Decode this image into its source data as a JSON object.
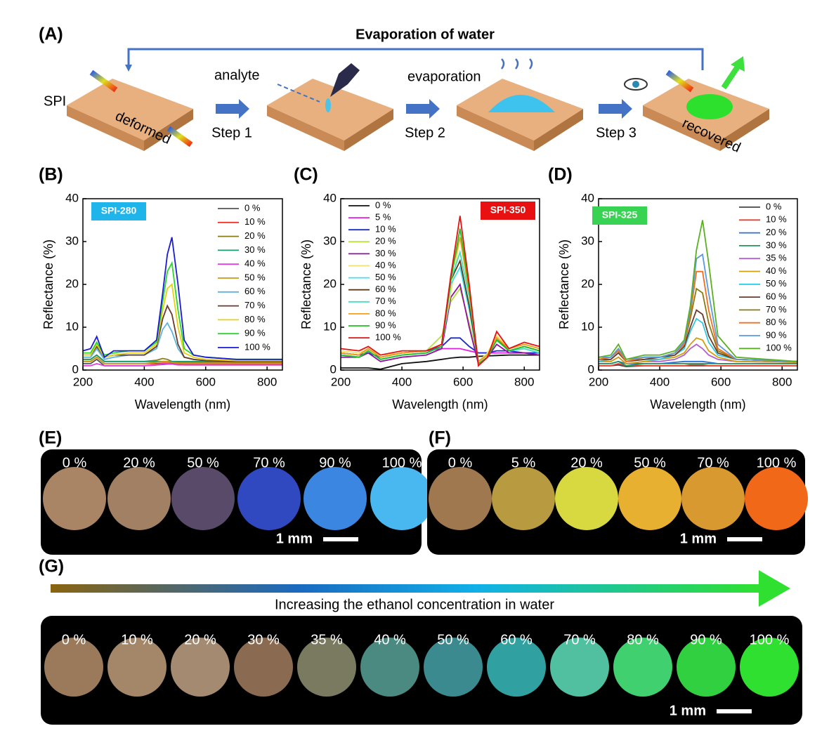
{
  "panel_labels": [
    "(A)",
    "(B)",
    "(C)",
    "(D)",
    "(E)",
    "(F)",
    "(G)"
  ],
  "schematic": {
    "title": "Evaporation of water",
    "sample": "SPI",
    "deformed": "deformed",
    "analyte": "analyte",
    "step1": "Step 1",
    "evaporation": "evaporation",
    "step2": "Step 2",
    "step3": "Step 3",
    "recovered": "recovered"
  },
  "chart_data": [
    {
      "type": "line",
      "annotation": "SPI-280",
      "annotation_color": "#1fb5ea",
      "xlabel": "Wavelength (nm)",
      "ylabel": "Reflectance (%)",
      "xlim": [
        200,
        850
      ],
      "xticks": [
        200,
        400,
        600,
        800
      ],
      "ylim": [
        0,
        40
      ],
      "yticks": [
        0,
        10,
        20,
        30,
        40
      ],
      "x": [
        200,
        225,
        245,
        270,
        300,
        350,
        400,
        440,
        460,
        475,
        490,
        510,
        530,
        560,
        600,
        700,
        850
      ],
      "series": [
        {
          "name": "0 %",
          "color": "#555555",
          "values": [
            1.5,
            1.5,
            2.5,
            1,
            1,
            1,
            1,
            1.2,
            1.3,
            1.4,
            1.4,
            1.3,
            1.2,
            1.2,
            1.2,
            1.2,
            1.2
          ]
        },
        {
          "name": "10 %",
          "color": "#e8362a",
          "values": [
            2,
            2,
            3,
            1.5,
            1.5,
            1.5,
            1.5,
            1.5,
            1.6,
            1.6,
            1.6,
            1.5,
            1.5,
            1.5,
            1.5,
            1.5,
            1.5
          ]
        },
        {
          "name": "20 %",
          "color": "#8b7a1a",
          "values": [
            2.5,
            2.5,
            3.5,
            2,
            2,
            2,
            2,
            2.3,
            2.7,
            2.5,
            2,
            1.8,
            1.8,
            1.8,
            1.8,
            1.8,
            1.8
          ]
        },
        {
          "name": "30 %",
          "color": "#1a9a6a",
          "values": [
            2.5,
            2.5,
            3.5,
            2,
            2,
            2,
            2,
            2,
            2,
            2,
            2,
            2,
            2,
            2,
            2,
            2,
            2
          ]
        },
        {
          "name": "40 %",
          "color": "#e040e0",
          "values": [
            1,
            1,
            1.5,
            1,
            1,
            1,
            1,
            1.2,
            1.4,
            1.5,
            1.4,
            1.2,
            1.2,
            1.2,
            1.2,
            1.2,
            1.2
          ]
        },
        {
          "name": "50 %",
          "color": "#c89a10",
          "values": [
            2,
            2,
            3,
            1.5,
            1.5,
            1.5,
            1.5,
            1.8,
            2,
            2,
            1.8,
            1.6,
            1.6,
            1.6,
            1.6,
            1.6,
            1.6
          ]
        },
        {
          "name": "60 %",
          "color": "#5ab4e0",
          "values": [
            3,
            3,
            5,
            2.5,
            3,
            3.5,
            3.5,
            5,
            9.5,
            11,
            9,
            5,
            3,
            2.5,
            2.2,
            2,
            2
          ]
        },
        {
          "name": "70 %",
          "color": "#6a3a2a",
          "values": [
            3.5,
            3.5,
            5.5,
            3,
            3.5,
            3.5,
            3.5,
            5.5,
            12,
            15,
            13,
            6,
            3,
            2.5,
            2.2,
            2,
            2
          ]
        },
        {
          "name": "80 %",
          "color": "#e8d010",
          "values": [
            3.5,
            3.5,
            6,
            3,
            3.5,
            4,
            4,
            6,
            14,
            19,
            20,
            10,
            4,
            3,
            2.5,
            2.2,
            2.2
          ]
        },
        {
          "name": "90 %",
          "color": "#2ad82a",
          "values": [
            4,
            4,
            6.5,
            3.5,
            4,
            4.5,
            4.5,
            6.5,
            16,
            23,
            25,
            14,
            5,
            3.5,
            3,
            2.5,
            2.5
          ]
        },
        {
          "name": "100 %",
          "color": "#1a1ad8",
          "values": [
            4.5,
            5,
            7.8,
            3,
            4.5,
            4.5,
            4.5,
            7,
            18,
            27,
            31,
            20,
            7,
            3.5,
            3,
            2.5,
            2.5
          ]
        }
      ]
    },
    {
      "type": "line",
      "annotation": "SPI-350",
      "annotation_color": "#e81010",
      "xlabel": "Wavelength (nm)",
      "ylabel": "Reflectance (%)",
      "xlim": [
        200,
        850
      ],
      "xticks": [
        200,
        400,
        600,
        800
      ],
      "ylim": [
        0,
        40
      ],
      "yticks": [
        0,
        10,
        20,
        30,
        40
      ],
      "x": [
        200,
        260,
        290,
        330,
        400,
        480,
        530,
        560,
        590,
        620,
        650,
        680,
        710,
        750,
        800,
        850
      ],
      "series": [
        {
          "name": "0 %",
          "color": "#111111",
          "values": [
            0.5,
            0.5,
            0.5,
            0.2,
            1.5,
            2,
            2.5,
            2.8,
            3,
            3,
            3.2,
            3.3,
            3.4,
            3.5,
            3.5,
            3.5
          ]
        },
        {
          "name": "5 %",
          "color": "#e020e0",
          "values": [
            4,
            3.5,
            4,
            3,
            4,
            4.5,
            5,
            5,
            5,
            4.5,
            4,
            4,
            4,
            4,
            4,
            4
          ]
        },
        {
          "name": "10 %",
          "color": "#1a2ad0",
          "values": [
            4,
            3.5,
            4,
            3,
            4,
            4.5,
            5.5,
            7.5,
            7.5,
            5.5,
            4,
            4,
            4.5,
            4.5,
            4,
            4
          ]
        },
        {
          "name": "20 %",
          "color": "#b8e040",
          "values": [
            4,
            3.5,
            5,
            3,
            4,
            4.5,
            8,
            16,
            19,
            11,
            2,
            4,
            8,
            5,
            6,
            5
          ]
        },
        {
          "name": "30 %",
          "color": "#9010a0",
          "values": [
            3,
            3,
            4,
            2,
            3,
            3.5,
            5,
            17,
            20,
            10,
            1.5,
            3,
            6,
            4,
            4,
            3.5
          ]
        },
        {
          "name": "40 %",
          "color": "#f0e070",
          "values": [
            4.5,
            4,
            5,
            3.5,
            4,
            4.5,
            6,
            18,
            31,
            18,
            2,
            4,
            8,
            5,
            6,
            5
          ]
        },
        {
          "name": "50 %",
          "color": "#40e0f0",
          "values": [
            3.5,
            3,
            4.5,
            2.5,
            3.5,
            4,
            5.5,
            20,
            24,
            14,
            2,
            3.5,
            7,
            4.5,
            5,
            4
          ]
        },
        {
          "name": "60 %",
          "color": "#5a3a1a",
          "values": [
            4,
            3.5,
            5,
            3,
            4,
            4.5,
            6,
            21,
            25.5,
            15,
            2,
            3.5,
            7.5,
            4.5,
            5.5,
            4.5
          ]
        },
        {
          "name": "70 %",
          "color": "#40e0c0",
          "values": [
            3.5,
            3,
            4.5,
            2.5,
            3.5,
            4,
            5.5,
            21,
            27.5,
            17,
            2,
            3.5,
            7,
            4.5,
            5,
            4
          ]
        },
        {
          "name": "80 %",
          "color": "#f0a020",
          "values": [
            4,
            3.5,
            5,
            3,
            4,
            4.5,
            6,
            22,
            31,
            18,
            2,
            3.5,
            7.5,
            5,
            6,
            5
          ]
        },
        {
          "name": "90 %",
          "color": "#20c020",
          "values": [
            3.5,
            3,
            4.5,
            2.5,
            3.5,
            4,
            5.5,
            21,
            33,
            19,
            1.5,
            3,
            7,
            4.5,
            5.5,
            4.5
          ]
        },
        {
          "name": "100 %",
          "color": "#e81010",
          "values": [
            5,
            4.5,
            5.5,
            3.5,
            4.5,
            4.5,
            6,
            22,
            36,
            20,
            1,
            3,
            9,
            5,
            6.5,
            5.5
          ]
        }
      ]
    },
    {
      "type": "line",
      "annotation": "SPI-325",
      "annotation_color": "#39d353",
      "xlabel": "Wavelength (nm)",
      "ylabel": "Reflectance (%)",
      "xlim": [
        200,
        850
      ],
      "xticks": [
        200,
        400,
        600,
        800
      ],
      "ylim": [
        0,
        40
      ],
      "yticks": [
        0,
        10,
        20,
        30,
        40
      ],
      "x": [
        200,
        240,
        265,
        290,
        350,
        400,
        450,
        480,
        500,
        520,
        540,
        560,
        590,
        650,
        850
      ],
      "series": [
        {
          "name": "0 %",
          "color": "#444444",
          "values": [
            1,
            1,
            1.2,
            0.8,
            1,
            1,
            1,
            1,
            1,
            1,
            1,
            1,
            1,
            1,
            1
          ]
        },
        {
          "name": "10 %",
          "color": "#e84030",
          "values": [
            1,
            1,
            1.5,
            1,
            1,
            1,
            1,
            1,
            1.2,
            1.2,
            1.2,
            1,
            1,
            1,
            1
          ]
        },
        {
          "name": "20 %",
          "color": "#2a70d0",
          "values": [
            1.5,
            1.5,
            2,
            1.5,
            1.5,
            1.5,
            1.8,
            2,
            2,
            2,
            2,
            1.8,
            1.5,
            1.5,
            1.5
          ]
        },
        {
          "name": "30 %",
          "color": "#1a9a5a",
          "values": [
            1.5,
            1.5,
            2,
            1,
            1.5,
            1.5,
            1.5,
            1.5,
            1.5,
            1.5,
            1.5,
            1.5,
            1.5,
            1.5,
            1.5
          ]
        },
        {
          "name": "35 %",
          "color": "#b060d0",
          "values": [
            2,
            2,
            3,
            1.5,
            2,
            2,
            2.5,
            3.5,
            5,
            6,
            5,
            3.5,
            2.5,
            2,
            1.8
          ]
        },
        {
          "name": "40 %",
          "color": "#d0a010",
          "values": [
            2,
            2,
            3,
            1.5,
            2,
            2.5,
            3,
            4,
            6,
            7.5,
            7,
            4.5,
            3,
            2,
            1.8
          ]
        },
        {
          "name": "50 %",
          "color": "#30c8e0",
          "values": [
            2,
            2.5,
            4,
            2,
            2.5,
            2.5,
            3.5,
            5,
            9,
            12,
            11,
            6.5,
            3.5,
            2.5,
            2
          ]
        },
        {
          "name": "60 %",
          "color": "#6a3a2a",
          "values": [
            2.5,
            2.5,
            4,
            2,
            2.5,
            3,
            3.5,
            5.5,
            10,
            14,
            13,
            8,
            4,
            2.5,
            2
          ]
        },
        {
          "name": "70 %",
          "color": "#8a7a10",
          "values": [
            2.5,
            3,
            4.5,
            2,
            3,
            3,
            4,
            6,
            12,
            19,
            18,
            11,
            4.5,
            2.5,
            2
          ]
        },
        {
          "name": "80 %",
          "color": "#f07020",
          "values": [
            2.5,
            3,
            4.5,
            2,
            3,
            3,
            4,
            6,
            13,
            23,
            23,
            14,
            5,
            2.5,
            2
          ]
        },
        {
          "name": "90 %",
          "color": "#5a9ae0",
          "values": [
            3,
            3,
            5,
            2.5,
            3,
            3,
            4,
            6.5,
            14,
            26,
            27,
            18,
            6,
            2.5,
            2
          ]
        },
        {
          "name": "100 %",
          "color": "#5ab020",
          "values": [
            3,
            3.5,
            6,
            2.5,
            3.5,
            3.5,
            4.5,
            7,
            15,
            28,
            35,
            25,
            8,
            3,
            2
          ]
        }
      ]
    }
  ],
  "photos": {
    "E": {
      "scale": "1 mm",
      "items": [
        {
          "label": "0 %",
          "color": "#a98566"
        },
        {
          "label": "20 %",
          "color": "#a28063"
        },
        {
          "label": "50 %",
          "color": "#5a4a6a"
        },
        {
          "label": "70 %",
          "color": "#3048c0"
        },
        {
          "label": "90 %",
          "color": "#3a86e0"
        },
        {
          "label": "100 %",
          "color": "#4ab8f0"
        }
      ]
    },
    "F": {
      "scale": "1 mm",
      "items": [
        {
          "label": "0 %",
          "color": "#a07850"
        },
        {
          "label": "5 %",
          "color": "#b89a40"
        },
        {
          "label": "20 %",
          "color": "#d8d840"
        },
        {
          "label": "50 %",
          "color": "#e8b030"
        },
        {
          "label": "70 %",
          "color": "#d89a30"
        },
        {
          "label": "100 %",
          "color": "#f06818"
        }
      ]
    },
    "G": {
      "caption": "Increasing the ethanol concentration in water",
      "scale": "1 mm",
      "items": [
        {
          "label": "0 %",
          "color": "#9a7a5a"
        },
        {
          "label": "10 %",
          "color": "#a48668"
        },
        {
          "label": "20 %",
          "color": "#a48a70"
        },
        {
          "label": "30 %",
          "color": "#8a6a50"
        },
        {
          "label": "35 %",
          "color": "#7a7a60"
        },
        {
          "label": "40 %",
          "color": "#4a8a80"
        },
        {
          "label": "50 %",
          "color": "#3a8a90"
        },
        {
          "label": "60 %",
          "color": "#30a0a0"
        },
        {
          "label": "70 %",
          "color": "#50c0a0"
        },
        {
          "label": "80 %",
          "color": "#40d070"
        },
        {
          "label": "90 %",
          "color": "#30d040"
        },
        {
          "label": "100 %",
          "color": "#30e030"
        }
      ]
    }
  }
}
